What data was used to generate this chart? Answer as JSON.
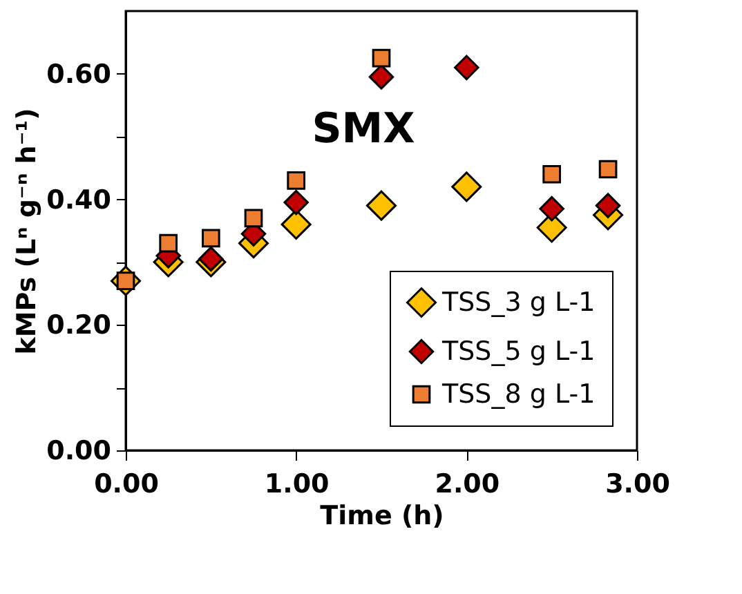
{
  "chart_data": {
    "type": "scatter",
    "xlabel": "Time (h)",
    "ylabel": "kMPs (Lⁿ g⁻ⁿ h⁻¹)",
    "x": [
      0,
      0.25,
      0.5,
      0.75,
      1.0,
      1.5,
      2.0,
      2.5,
      2.83
    ],
    "series": [
      {
        "name": "TSS_3 g L-1",
        "color": "#ffc000",
        "marker": "diamond",
        "values": [
          0.27,
          0.3,
          0.3,
          0.33,
          0.36,
          0.39,
          0.42,
          0.355,
          0.375
        ]
      },
      {
        "name": "TSS_5 g L-1",
        "color": "#c00000",
        "marker": "diamond",
        "values": [
          null,
          0.31,
          0.305,
          0.345,
          0.395,
          0.595,
          0.61,
          0.385,
          0.39
        ]
      },
      {
        "name": "TSS_8 g L-1",
        "color": "#ed7d31",
        "marker": "square",
        "values": [
          0.27,
          0.33,
          0.338,
          0.37,
          0.43,
          0.625,
          null,
          0.44,
          0.448
        ]
      }
    ],
    "xlim": [
      0,
      3
    ],
    "ylim": [
      0,
      0.7
    ],
    "xticks": [
      {
        "value": 0,
        "label": "0.00"
      },
      {
        "value": 1,
        "label": "1.00"
      },
      {
        "value": 2,
        "label": "2.00"
      },
      {
        "value": 3,
        "label": "3.00"
      }
    ],
    "yticks": [
      {
        "value": 0,
        "label": "0.00"
      },
      {
        "value": 0.1,
        "label": null
      },
      {
        "value": 0.2,
        "label": "0.20"
      },
      {
        "value": 0.3,
        "label": null
      },
      {
        "value": 0.4,
        "label": "0.40"
      },
      {
        "value": 0.5,
        "label": null
      },
      {
        "value": 0.6,
        "label": "0.60"
      }
    ],
    "annotations": [
      "SMX"
    ],
    "grid": false,
    "legend": "bottom right"
  }
}
